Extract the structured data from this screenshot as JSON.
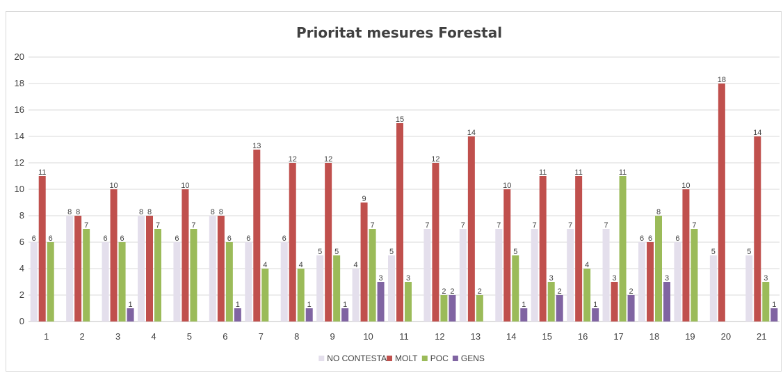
{
  "chart_data": {
    "type": "bar",
    "title": "Prioritat mesures Forestal",
    "categories": [
      "1",
      "2",
      "3",
      "4",
      "5",
      "6",
      "7",
      "8",
      "9",
      "10",
      "11",
      "12",
      "13",
      "14",
      "15",
      "16",
      "17",
      "18",
      "19",
      "20",
      "21"
    ],
    "series": [
      {
        "name": "NO CONTESTA",
        "color": "#e4dfec",
        "values": [
          6,
          8,
          6,
          8,
          6,
          8,
          6,
          6,
          5,
          4,
          5,
          7,
          7,
          7,
          7,
          7,
          7,
          6,
          6,
          5,
          5
        ]
      },
      {
        "name": "MOLT",
        "color": "#c0504d",
        "values": [
          11,
          8,
          10,
          8,
          10,
          8,
          13,
          12,
          12,
          9,
          15,
          12,
          14,
          10,
          11,
          11,
          3,
          6,
          10,
          18,
          14
        ]
      },
      {
        "name": "POC",
        "color": "#9bbb59",
        "values": [
          6,
          7,
          6,
          7,
          7,
          6,
          4,
          4,
          5,
          7,
          3,
          2,
          2,
          5,
          3,
          4,
          11,
          8,
          7,
          0,
          3
        ]
      },
      {
        "name": "GENS",
        "color": "#8064a2",
        "values": [
          0,
          0,
          1,
          0,
          0,
          1,
          0,
          1,
          1,
          3,
          0,
          2,
          0,
          1,
          2,
          1,
          2,
          3,
          0,
          0,
          1
        ]
      }
    ],
    "ylim": [
      0,
      20
    ],
    "yticks": [
      0,
      2,
      4,
      6,
      8,
      10,
      12,
      14,
      16,
      18,
      20
    ],
    "grid": true,
    "legend_position": "bottom"
  }
}
